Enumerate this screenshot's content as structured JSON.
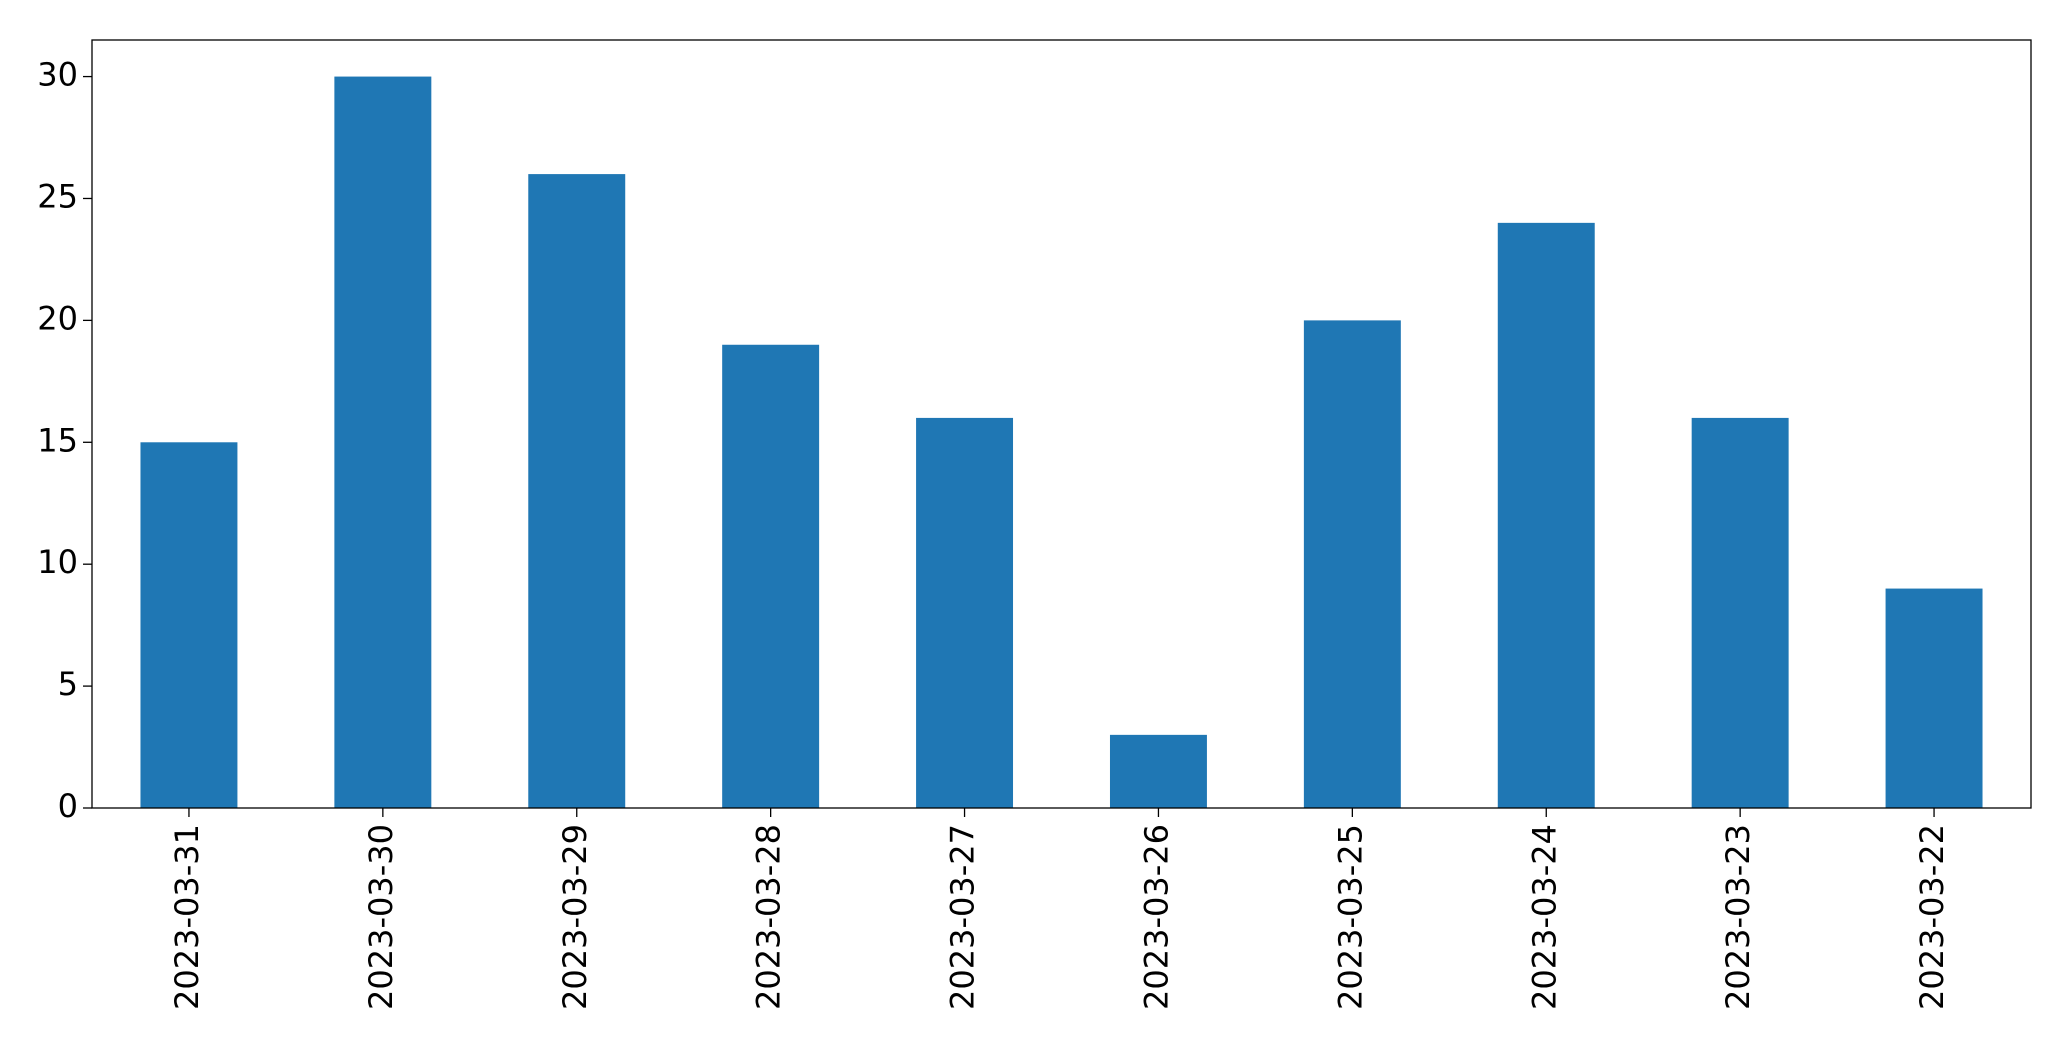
{
  "chart_data": {
    "type": "bar",
    "categories": [
      "2023-03-31",
      "2023-03-30",
      "2023-03-29",
      "2023-03-28",
      "2023-03-27",
      "2023-03-26",
      "2023-03-25",
      "2023-03-24",
      "2023-03-23",
      "2023-03-22"
    ],
    "values": [
      15,
      30,
      26,
      19,
      16,
      3,
      20,
      24,
      16,
      9
    ],
    "color": "#1f77b4",
    "ylim": [
      0,
      31.5
    ],
    "yticks": [
      0,
      5,
      10,
      15,
      20,
      25,
      30
    ],
    "grid": false
  }
}
